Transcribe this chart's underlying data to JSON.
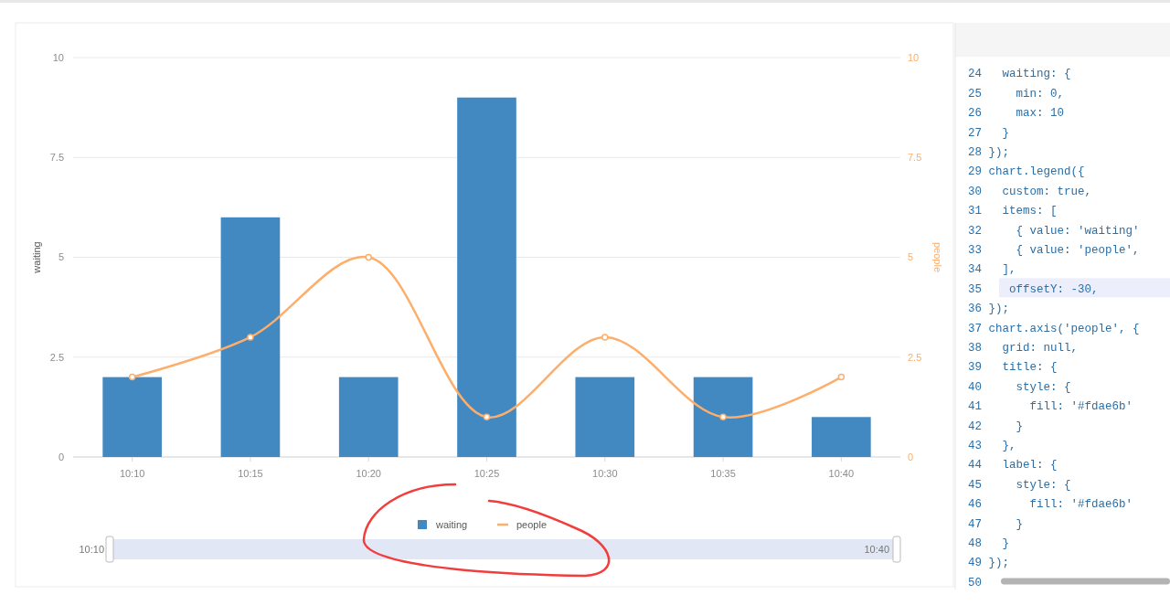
{
  "chart_data": [
    {
      "type": "bar",
      "categories": [
        "10:10",
        "10:15",
        "10:20",
        "10:25",
        "10:30",
        "10:35",
        "10:40"
      ],
      "series": [
        {
          "name": "waiting",
          "type": "bar",
          "color": "#4289c1",
          "values": [
            2,
            6,
            2,
            9,
            2,
            2,
            1
          ]
        },
        {
          "name": "people",
          "type": "line",
          "axis": "y2",
          "color": "#fdae6b",
          "values": [
            2,
            3,
            5,
            1,
            3,
            1,
            2
          ]
        }
      ],
      "ylabel": "waiting",
      "y2label": "people",
      "ylim": [
        0,
        10
      ],
      "yticks": [
        0,
        2.5,
        5,
        7.5,
        10
      ],
      "y2lim": [
        0,
        10
      ],
      "y2ticks": [
        0,
        2.5,
        5,
        7.5,
        10
      ],
      "grid": "y",
      "legend": "bottom",
      "marker": "circle",
      "line_style": "solid",
      "annotations": [
        "10:10",
        "10:40"
      ]
    },
    {
      "type": "other",
      "annotations": [
        "24   waiting: {",
        "25     min: 0,",
        "26     max: 10",
        "27   }",
        "28 });",
        "29 chart.legend({",
        "30   custom: true,",
        "31   items: [",
        "32     { value: 'waiting'",
        "33     { value: 'people',",
        "34   ],",
        "35    offsetY: -30,",
        "36 });",
        "37 chart.axis('people', {",
        "38   grid: null,",
        "39   title: {",
        "40     style: {",
        "41       fill: '#fdae6b'",
        "42     }",
        "43   },",
        "44   label: {",
        "45     style: {",
        "46       fill: '#fdae6b'",
        "47     }",
        "48   }",
        "49 });",
        "50"
      ]
    }
  ]
}
